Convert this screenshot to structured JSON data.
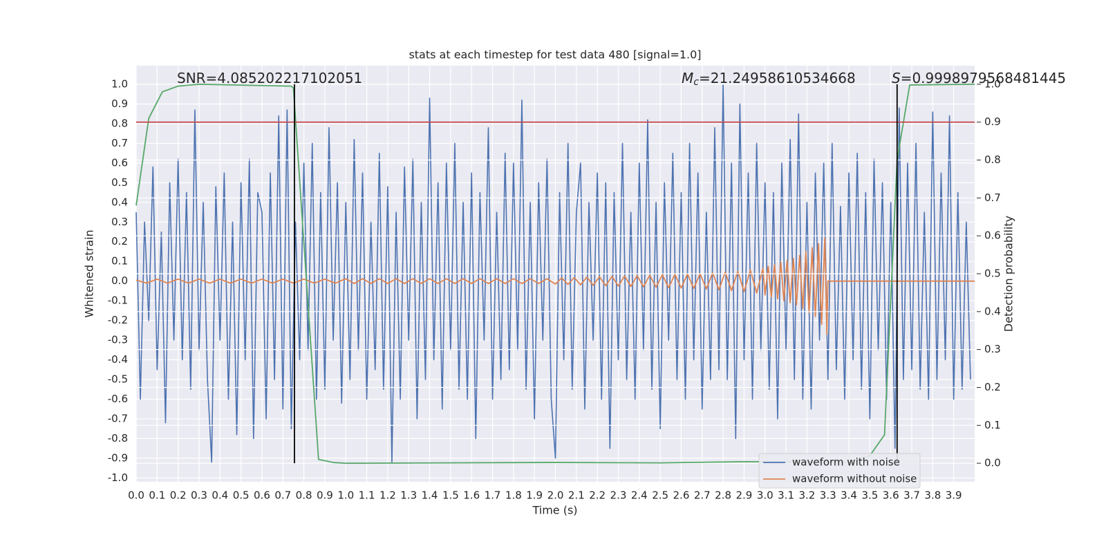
{
  "chart_data": {
    "type": "line",
    "title": "stats at each timestep for test data 480 [signal=1.0]",
    "xlabel": "Time (s)",
    "ylabel": "Whitened strain",
    "y2label": "Detection probability",
    "xlim": [
      0,
      4
    ],
    "ylim": [
      -1.02,
      1.095
    ],
    "y2lim": [
      -0.049,
      1.049
    ],
    "grid": true,
    "legend": "lower right",
    "xticks": [
      {
        "value": 0,
        "label": "0.0"
      },
      0.1,
      0.2,
      0.3,
      0.4,
      0.5,
      0.6,
      0.7,
      0.8,
      0.9,
      {
        "value": 1,
        "label": "1.0"
      },
      1.1,
      1.2,
      1.3,
      1.4,
      1.5,
      1.6,
      1.7,
      1.8,
      1.9,
      {
        "value": 2,
        "label": "2.0"
      },
      2.1,
      2.2,
      2.3,
      2.4,
      2.5,
      2.6,
      2.7,
      2.8,
      2.9,
      {
        "value": 3,
        "label": "3.0"
      },
      3.1,
      3.2,
      3.3,
      3.4,
      3.5,
      3.6,
      3.7,
      3.8,
      3.9
    ],
    "yticks": [
      {
        "value": -1,
        "label": "-1.0"
      },
      -0.9,
      -0.8,
      -0.7,
      -0.6,
      -0.5,
      -0.4,
      -0.3,
      -0.2,
      -0.1,
      {
        "value": 0,
        "label": "0.0"
      },
      0.1,
      0.2,
      0.3,
      0.4,
      0.5,
      0.6,
      0.7,
      0.8,
      0.9,
      {
        "value": 1,
        "label": "1.0"
      }
    ],
    "y2ticks": [
      {
        "value": 0,
        "label": "0.0"
      },
      0.1,
      0.2,
      0.3,
      0.4,
      0.5,
      0.6,
      0.7,
      0.8,
      0.9,
      {
        "value": 1,
        "label": "1.0"
      }
    ],
    "series": [
      {
        "name": "waveform with noise",
        "color": "#4c72b0",
        "x": [
          0,
          0.02,
          0.04,
          0.06,
          0.08,
          0.1,
          0.12,
          0.14,
          0.16,
          0.18,
          0.2,
          0.22,
          0.24,
          0.26,
          0.28,
          0.3,
          0.32,
          0.34,
          0.36,
          0.38,
          0.4,
          0.42,
          0.44,
          0.46,
          0.48,
          0.5,
          0.52,
          0.54,
          0.56,
          0.58,
          0.6,
          0.62,
          0.64,
          0.66,
          0.68,
          0.7,
          0.72,
          0.74,
          0.76,
          0.78,
          0.8,
          0.82,
          0.84,
          0.86,
          0.88,
          0.9,
          0.92,
          0.94,
          0.96,
          0.98,
          1,
          1.02,
          1.04,
          1.06,
          1.08,
          1.1,
          1.12,
          1.14,
          1.16,
          1.18,
          1.2,
          1.22,
          1.24,
          1.26,
          1.28,
          1.3,
          1.32,
          1.34,
          1.36,
          1.38,
          1.4,
          1.42,
          1.44,
          1.46,
          1.48,
          1.5,
          1.52,
          1.54,
          1.56,
          1.58,
          1.6,
          1.62,
          1.64,
          1.66,
          1.68,
          1.7,
          1.72,
          1.74,
          1.76,
          1.78,
          1.8,
          1.82,
          1.84,
          1.86,
          1.88,
          1.9,
          1.92,
          1.94,
          1.96,
          1.98,
          2,
          2.02,
          2.04,
          2.06,
          2.08,
          2.1,
          2.12,
          2.14,
          2.16,
          2.18,
          2.2,
          2.22,
          2.24,
          2.26,
          2.28,
          2.3,
          2.32,
          2.34,
          2.36,
          2.38,
          2.4,
          2.42,
          2.44,
          2.46,
          2.48,
          2.5,
          2.52,
          2.54,
          2.56,
          2.58,
          2.6,
          2.62,
          2.64,
          2.66,
          2.68,
          2.7,
          2.72,
          2.74,
          2.76,
          2.78,
          2.8,
          2.82,
          2.84,
          2.86,
          2.88,
          2.9,
          2.92,
          2.94,
          2.96,
          2.98,
          3,
          3.02,
          3.04,
          3.06,
          3.08,
          3.1,
          3.12,
          3.14,
          3.16,
          3.18,
          3.2,
          3.22,
          3.24,
          3.26,
          3.28,
          3.3,
          3.32,
          3.34,
          3.36,
          3.38,
          3.4,
          3.42,
          3.44,
          3.46,
          3.48,
          3.5,
          3.52,
          3.54,
          3.56,
          3.58,
          3.6,
          3.62,
          3.64,
          3.66,
          3.68,
          3.7,
          3.72,
          3.74,
          3.76,
          3.78,
          3.8,
          3.82,
          3.84,
          3.86,
          3.88,
          3.9,
          3.92,
          3.94,
          3.96,
          3.98
        ],
        "values": [
          0.35,
          -0.6,
          0.3,
          -0.2,
          0.58,
          -0.45,
          0.25,
          -0.72,
          0.5,
          -0.3,
          0.62,
          -0.4,
          0.45,
          -0.55,
          0.87,
          -0.35,
          0.4,
          -0.5,
          -0.92,
          0.48,
          -0.3,
          0.55,
          -0.6,
          0.3,
          -0.78,
          0.5,
          -0.4,
          0.62,
          -0.8,
          0.45,
          0.35,
          -0.7,
          0.55,
          -0.5,
          0.84,
          -0.65,
          0.87,
          -0.75,
          0.3,
          -0.4,
          0.6,
          -0.35,
          0.7,
          -0.6,
          0.45,
          -0.55,
          0.78,
          -0.3,
          0.5,
          -0.62,
          0.4,
          -0.5,
          0.72,
          -0.35,
          0.55,
          -0.6,
          0.3,
          -0.45,
          0.65,
          -0.55,
          0.48,
          -0.92,
          0.35,
          -0.6,
          0.58,
          -0.3,
          0.62,
          -0.7,
          0.4,
          -0.5,
          0.93,
          -0.4,
          0.5,
          -0.65,
          0.6,
          -0.35,
          0.7,
          -0.55,
          0.4,
          -0.6,
          0.55,
          -0.8,
          0.45,
          -0.3,
          0.78,
          -0.6,
          0.35,
          -0.5,
          0.65,
          -0.45,
          0.6,
          -0.35,
          0.92,
          -0.55,
          0.4,
          -0.7,
          0.5,
          -0.3,
          0.62,
          -0.6,
          -0.9,
          0.45,
          -0.4,
          0.7,
          -0.55,
          0.35,
          0.6,
          -0.65,
          0.4,
          -0.3,
          0.55,
          -0.6,
          0.5,
          -0.85,
          0.45,
          -0.4,
          0.7,
          -0.5,
          0.35,
          -0.6,
          0.6,
          -0.35,
          0.82,
          -0.55,
          0.4,
          -0.75,
          0.5,
          -0.3,
          0.65,
          -0.5,
          0.45,
          -0.6,
          0.7,
          -0.4,
          0.55,
          -0.65,
          0.35,
          -0.5,
          0.78,
          -0.45,
          1.0,
          -0.5,
          0.6,
          -0.8,
          0.9,
          -0.4,
          0.55,
          -0.6,
          0.7,
          -0.35,
          0.5,
          -0.55,
          0.45,
          -0.7,
          0.6,
          -0.35,
          0.72,
          -0.5,
          0.85,
          -0.6,
          0.4,
          -0.65,
          0.55,
          -0.3,
          0.6,
          -0.5,
          0.7,
          -0.45,
          0.38,
          -0.6,
          0.55,
          -0.4,
          0.65,
          -0.55,
          0.45,
          -0.7,
          0.62,
          -0.35,
          0.5,
          -0.6,
          0.4,
          -0.85,
          0.88,
          -0.5,
          0.6,
          -0.45,
          0.7,
          -0.55,
          0.35,
          -0.6,
          0.86,
          -0.5,
          0.55,
          -0.4,
          0.84,
          -0.6,
          0.45,
          -0.55,
          0.3,
          -0.5
        ]
      },
      {
        "name": "waveform without noise",
        "color": "#dd8452",
        "x": [
          0,
          0.05,
          0.1,
          0.15,
          0.2,
          0.25,
          0.3,
          0.35,
          0.4,
          0.45,
          0.5,
          0.55,
          0.6,
          0.65,
          0.7,
          0.75,
          0.8,
          0.85,
          0.9,
          0.95,
          1,
          1.04,
          1.08,
          1.12,
          1.16,
          1.2,
          1.24,
          1.28,
          1.32,
          1.36,
          1.4,
          1.44,
          1.48,
          1.52,
          1.56,
          1.6,
          1.64,
          1.68,
          1.72,
          1.76,
          1.8,
          1.84,
          1.88,
          1.92,
          1.96,
          2,
          2.03,
          2.06,
          2.09,
          2.12,
          2.15,
          2.18,
          2.21,
          2.24,
          2.27,
          2.3,
          2.33,
          2.36,
          2.39,
          2.42,
          2.45,
          2.48,
          2.51,
          2.54,
          2.57,
          2.6,
          2.63,
          2.66,
          2.69,
          2.72,
          2.75,
          2.78,
          2.81,
          2.84,
          2.87,
          2.9,
          2.93,
          2.96,
          2.99,
          3,
          3.015,
          3.03,
          3.045,
          3.06,
          3.075,
          3.09,
          3.105,
          3.12,
          3.135,
          3.15,
          3.165,
          3.18,
          3.195,
          3.21,
          3.225,
          3.24,
          3.255,
          3.27,
          3.285,
          3.295,
          3.3,
          4
        ],
        "values": [
          0.005,
          -0.01,
          0.01,
          -0.01,
          0.01,
          -0.01,
          0.01,
          -0.01,
          0.01,
          -0.01,
          0.01,
          -0.01,
          0.01,
          -0.01,
          0.01,
          -0.01,
          0.01,
          -0.01,
          0.01,
          -0.01,
          0.012,
          -0.012,
          0.012,
          -0.012,
          0.012,
          -0.012,
          0.012,
          -0.012,
          0.012,
          -0.012,
          0.012,
          -0.012,
          0.012,
          -0.012,
          0.012,
          -0.012,
          0.012,
          -0.012,
          0.012,
          -0.012,
          0.012,
          -0.012,
          0.012,
          -0.012,
          0.012,
          -0.015,
          0.016,
          -0.017,
          0.018,
          -0.019,
          0.02,
          -0.021,
          0.022,
          -0.023,
          0.024,
          -0.025,
          0.026,
          -0.027,
          0.028,
          -0.029,
          0.03,
          -0.031,
          0.032,
          -0.033,
          0.034,
          -0.035,
          0.036,
          -0.037,
          0.038,
          -0.04,
          0.042,
          -0.044,
          0.046,
          -0.048,
          0.05,
          -0.053,
          0.056,
          -0.06,
          0.064,
          -0.07,
          0.075,
          -0.08,
          0.085,
          -0.09,
          0.095,
          -0.1,
          0.105,
          -0.11,
          0.115,
          -0.12,
          0.13,
          -0.14,
          0.15,
          -0.16,
          0.17,
          -0.18,
          0.19,
          -0.22,
          0.22,
          -0.27,
          0,
          0
        ]
      }
    ],
    "y2_series": [
      {
        "color": "#55a868",
        "axis": "y2",
        "x": [
          0,
          0.06,
          0.125,
          0.2,
          0.3,
          0.74,
          0.75,
          0.87,
          0.94,
          1.0,
          2.0,
          2.5,
          2.9,
          3.4,
          3.5,
          3.57,
          3.63,
          3.69,
          4.0
        ],
        "values": [
          0.68,
          0.91,
          0.98,
          0.995,
          1.0,
          0.995,
          0.99,
          0.01,
          0.002,
          0.0,
          0.002,
          0.001,
          0.004,
          0.003,
          0.02,
          0.075,
          0.8,
          0.998,
          1.0
        ]
      }
    ],
    "hlines": [
      {
        "value": 0.9,
        "axis": "y2",
        "color": "#c44e52"
      }
    ],
    "vlines": [
      {
        "value": 0.755,
        "range": [
          0,
          1
        ],
        "axis": "y2",
        "color": "#000000"
      },
      {
        "value": 3.63,
        "range": [
          0,
          1
        ],
        "axis": "y2",
        "color": "#000000"
      }
    ],
    "annotations": [
      {
        "label": "SNR=4.085202217102051"
      },
      {
        "symbol": "M",
        "subscript": "c",
        "label": "=21.24958610534668"
      },
      {
        "symbol": "S",
        "label": "=0.9998979568481445"
      }
    ]
  }
}
